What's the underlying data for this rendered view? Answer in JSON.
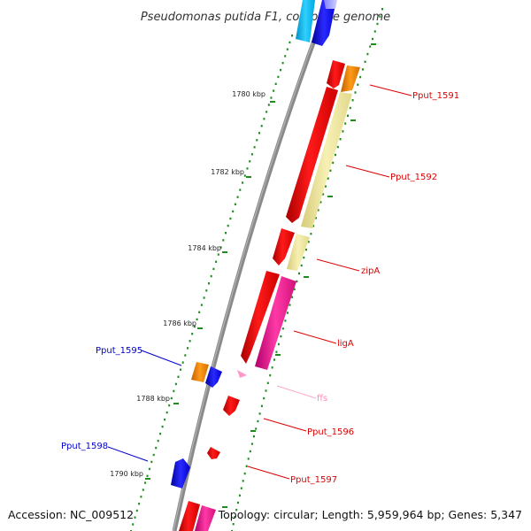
{
  "title": "Pseudomonas putida F1, complete genome",
  "footer": {
    "accession": "Accession: NC_009512",
    "summary": "Topology: circular; Length: 5,959,964 bp; Genes: 5,347"
  },
  "ticks": [
    "1780 kbp",
    "1782 kbp",
    "1784 kbp",
    "1786 kbp",
    "1788 kbp",
    "1790 kbp"
  ],
  "colors": {
    "backbone": "#8a8a8a",
    "tick": "#1e8c1e",
    "cds_red": "#ff0000",
    "orange": "#ff8c00",
    "khaki": "#f0e68c",
    "magenta": "#ff1493",
    "blue": "#0000ee",
    "cyan": "#00bfff",
    "pink": "#ff99cc",
    "red_label": "#dd0000",
    "blue_label": "#0000cc",
    "pink_label": "#ff88bb"
  },
  "genes": [
    {
      "name": "Pput_1591",
      "color": "red_label"
    },
    {
      "name": "Pput_1592",
      "color": "red_label"
    },
    {
      "name": "zipA",
      "color": "red_label"
    },
    {
      "name": "ligA",
      "color": "red_label"
    },
    {
      "name": "Pput_1595",
      "color": "blue_label"
    },
    {
      "name": "ffs",
      "color": "pink_label"
    },
    {
      "name": "Pput_1596",
      "color": "red_label"
    },
    {
      "name": "Pput_1598",
      "color": "blue_label"
    },
    {
      "name": "Pput_1597",
      "color": "red_label"
    }
  ]
}
